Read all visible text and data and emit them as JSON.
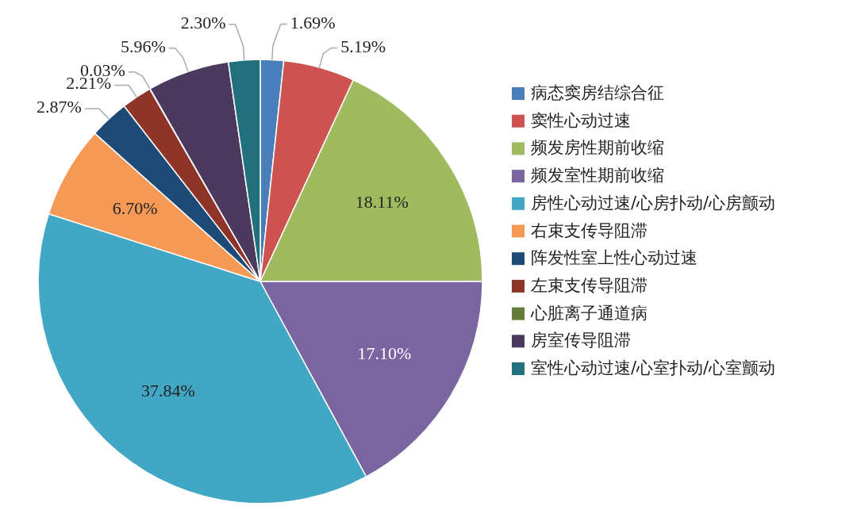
{
  "chart_data": {
    "type": "pie",
    "categories": [
      "病态窦房结综合征",
      "窦性心动过速",
      "频发房性期前收缩",
      "频发室性期前收缩",
      "房性心动过速/心房扑动/心房颤动",
      "右束支传导阻滞",
      "阵发性室上性心动过速",
      "左束支传导阻滞",
      "心脏离子通道病",
      "房室传导阻滞",
      "室性心动过速/心室扑动/心室颤动"
    ],
    "values": [
      1.69,
      5.19,
      18.11,
      17.1,
      37.84,
      6.7,
      2.87,
      2.21,
      0.03,
      5.96,
      2.3
    ],
    "colors": [
      "#4a7ebb",
      "#cd5350",
      "#a0bb5f",
      "#7b65a0",
      "#41a7c5",
      "#f49a56",
      "#1e4a78",
      "#8e3429",
      "#667c3a",
      "#4b3a5e",
      "#22707d"
    ],
    "value_labels": [
      "1.69%",
      "5.19%",
      "18.11%",
      "17.10%",
      "37.84%",
      "6.70%",
      "2.87%",
      "2.21%",
      "0.03%",
      "5.96%",
      "2.30%"
    ],
    "legend": "right"
  }
}
